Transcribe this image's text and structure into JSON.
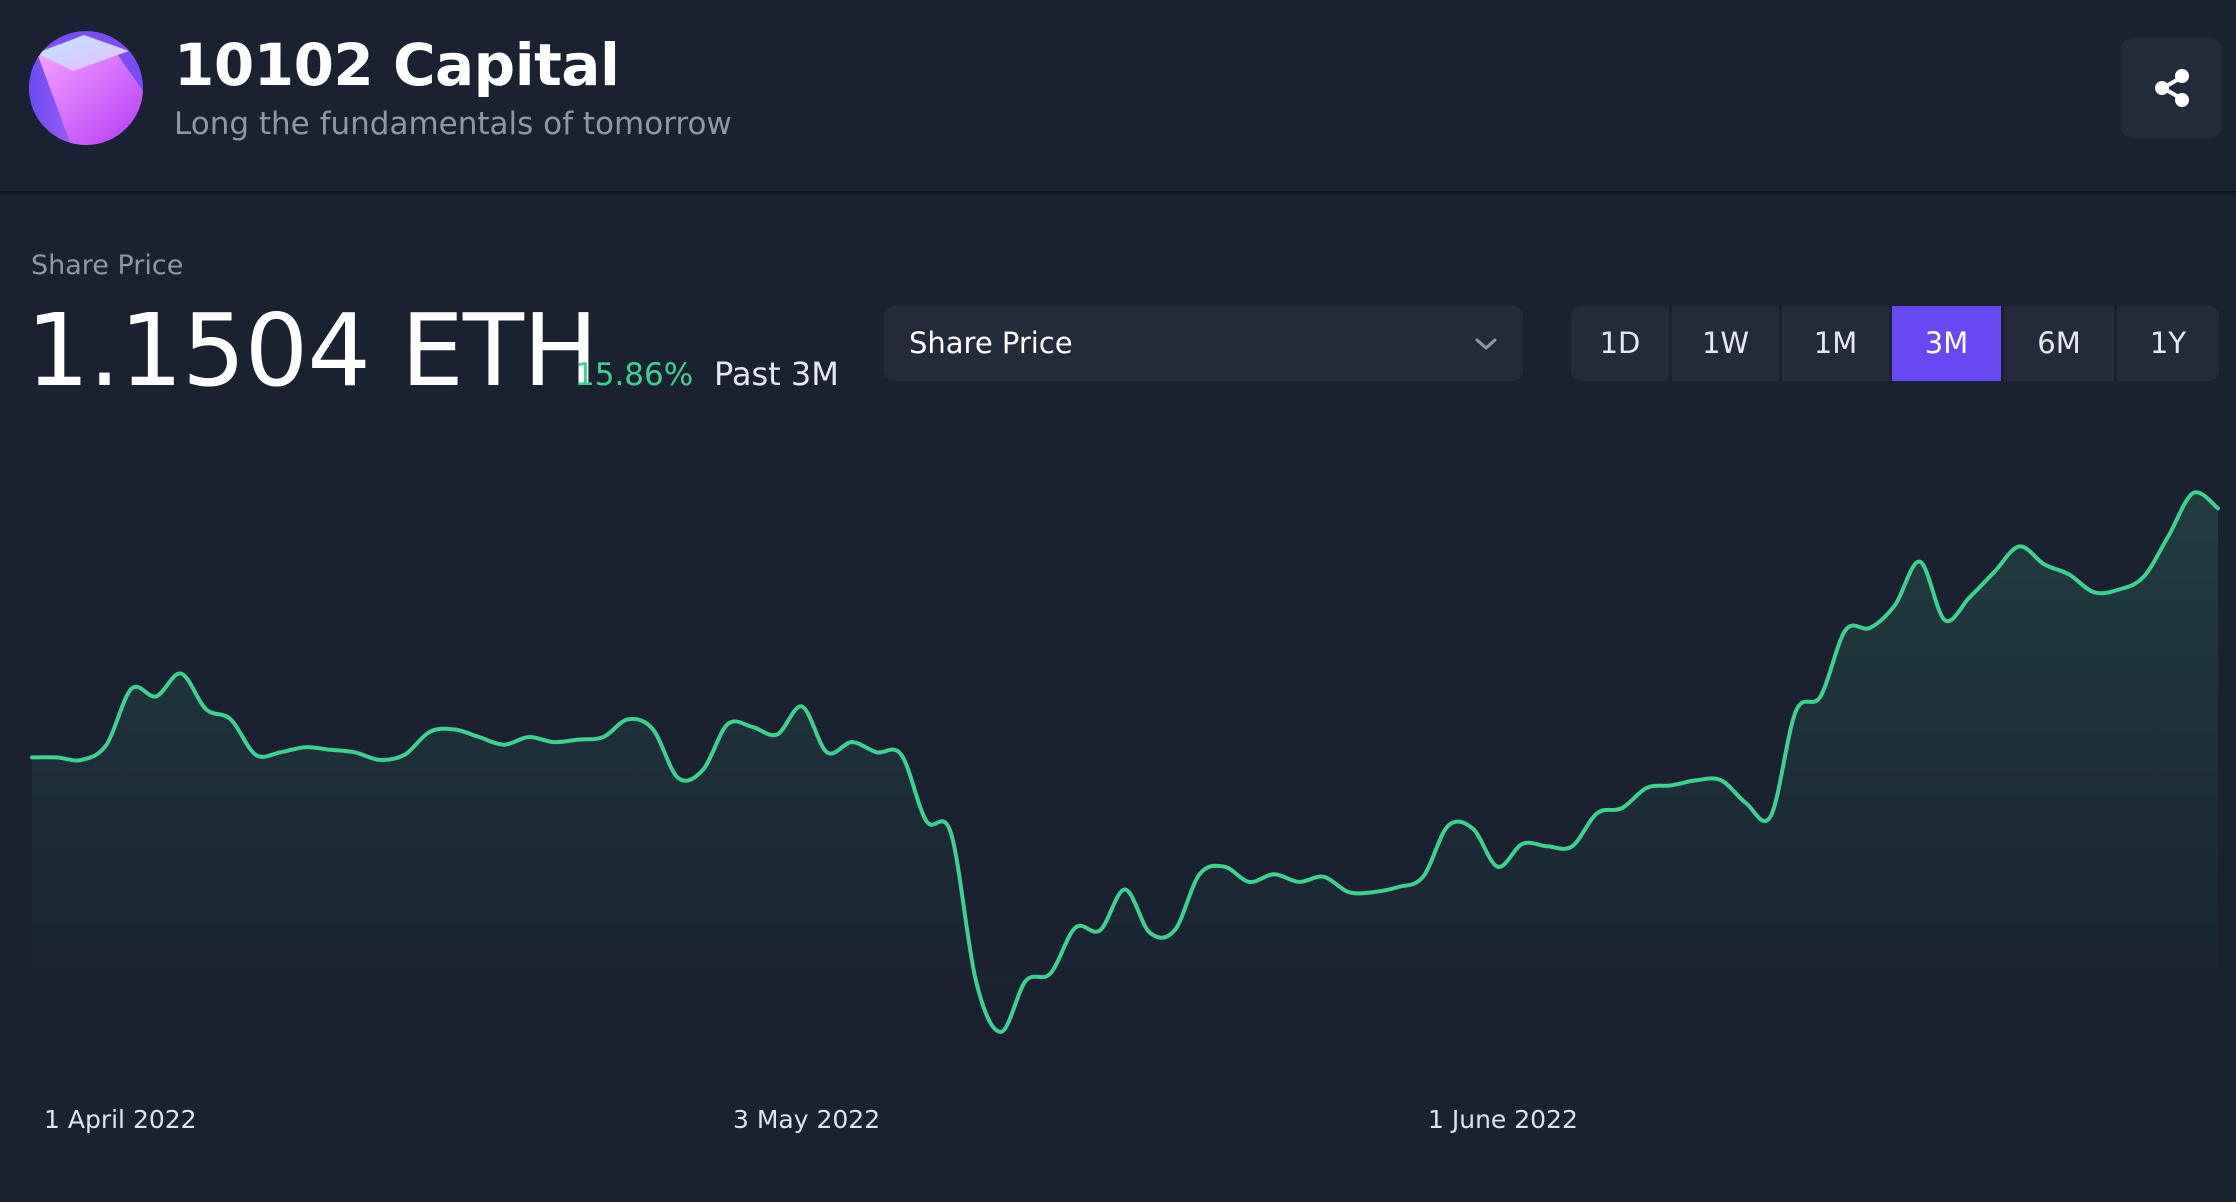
{
  "header": {
    "title": "10102 Capital",
    "subtitle": "Long the fundamentals of tomorrow",
    "logo_icon": "gradient-cube-logo",
    "share_icon": "share-icon"
  },
  "metric": {
    "label": "Share Price",
    "value": "1.1504 ETH",
    "change_percent": "15.86%",
    "change_period": "Past 3M"
  },
  "dropdown": {
    "selected": "Share Price",
    "chevron_icon": "chevron-down-icon"
  },
  "timeframes": [
    {
      "label": "1D",
      "active": false
    },
    {
      "label": "1W",
      "active": false
    },
    {
      "label": "1M",
      "active": false
    },
    {
      "label": "3M",
      "active": true
    },
    {
      "label": "6M",
      "active": false
    },
    {
      "label": "1Y",
      "active": false
    }
  ],
  "colors": {
    "background": "#1a2131",
    "panel": "#232b3b",
    "accent": "#6848f5",
    "line": "#3ed190",
    "positive": "#3ed190",
    "muted_text": "#8f97a8"
  },
  "chart_data": {
    "type": "area",
    "x_tick_labels": [
      "1 April 2022",
      "3 May 2022",
      "1 June 2022"
    ],
    "points": [
      [
        1,
        0.993
      ],
      [
        2,
        0.993
      ],
      [
        3,
        0.992
      ],
      [
        4,
        0.998
      ],
      [
        5,
        1.02
      ],
      [
        6,
        1.017
      ],
      [
        7,
        1.026
      ],
      [
        8,
        1.012
      ],
      [
        9,
        1.008
      ],
      [
        10,
        0.994
      ],
      [
        11,
        0.995
      ],
      [
        12,
        0.997
      ],
      [
        13,
        0.996
      ],
      [
        14,
        0.995
      ],
      [
        15,
        0.992
      ],
      [
        16,
        0.994
      ],
      [
        17,
        1.003
      ],
      [
        18,
        1.004
      ],
      [
        19,
        1.001
      ],
      [
        20,
        0.998
      ],
      [
        21,
        1.001
      ],
      [
        22,
        0.999
      ],
      [
        23,
        1.0
      ],
      [
        24,
        1.001
      ],
      [
        25,
        1.008
      ],
      [
        26,
        1.004
      ],
      [
        27,
        0.985
      ],
      [
        28,
        0.988
      ],
      [
        29,
        1.006
      ],
      [
        30,
        1.005
      ],
      [
        31,
        1.002
      ],
      [
        32,
        1.013
      ],
      [
        33,
        0.995
      ],
      [
        34,
        0.999
      ],
      [
        35,
        0.995
      ],
      [
        36,
        0.994
      ],
      [
        37,
        0.968
      ],
      [
        38,
        0.963
      ],
      [
        39,
        0.905
      ],
      [
        40,
        0.885
      ],
      [
        41,
        0.905
      ],
      [
        42,
        0.908
      ],
      [
        43,
        0.926
      ],
      [
        44,
        0.925
      ],
      [
        45,
        0.941
      ],
      [
        46,
        0.924
      ],
      [
        47,
        0.925
      ],
      [
        48,
        0.947
      ],
      [
        49,
        0.95
      ],
      [
        50,
        0.944
      ],
      [
        51,
        0.947
      ],
      [
        52,
        0.944
      ],
      [
        53,
        0.946
      ],
      [
        54,
        0.94
      ],
      [
        55,
        0.94
      ],
      [
        56,
        0.942
      ],
      [
        57,
        0.946
      ],
      [
        58,
        0.966
      ],
      [
        59,
        0.965
      ],
      [
        60,
        0.95
      ],
      [
        61,
        0.959
      ],
      [
        62,
        0.958
      ],
      [
        63,
        0.958
      ],
      [
        64,
        0.971
      ],
      [
        65,
        0.973
      ],
      [
        66,
        0.981
      ],
      [
        67,
        0.982
      ],
      [
        68,
        0.984
      ],
      [
        69,
        0.984
      ],
      [
        70,
        0.975
      ],
      [
        71,
        0.97
      ],
      [
        72,
        1.011
      ],
      [
        73,
        1.017
      ],
      [
        74,
        1.043
      ],
      [
        75,
        1.044
      ],
      [
        76,
        1.053
      ],
      [
        77,
        1.07
      ],
      [
        78,
        1.047
      ],
      [
        79,
        1.056
      ],
      [
        80,
        1.066
      ],
      [
        81,
        1.076
      ],
      [
        82,
        1.069
      ],
      [
        83,
        1.065
      ],
      [
        84,
        1.058
      ],
      [
        85,
        1.059
      ],
      [
        86,
        1.064
      ],
      [
        87,
        1.08
      ],
      [
        88,
        1.097
      ],
      [
        89,
        1.091
      ]
    ],
    "y_range": [
      0.87,
      1.11
    ],
    "grid": false,
    "legend": "none"
  }
}
